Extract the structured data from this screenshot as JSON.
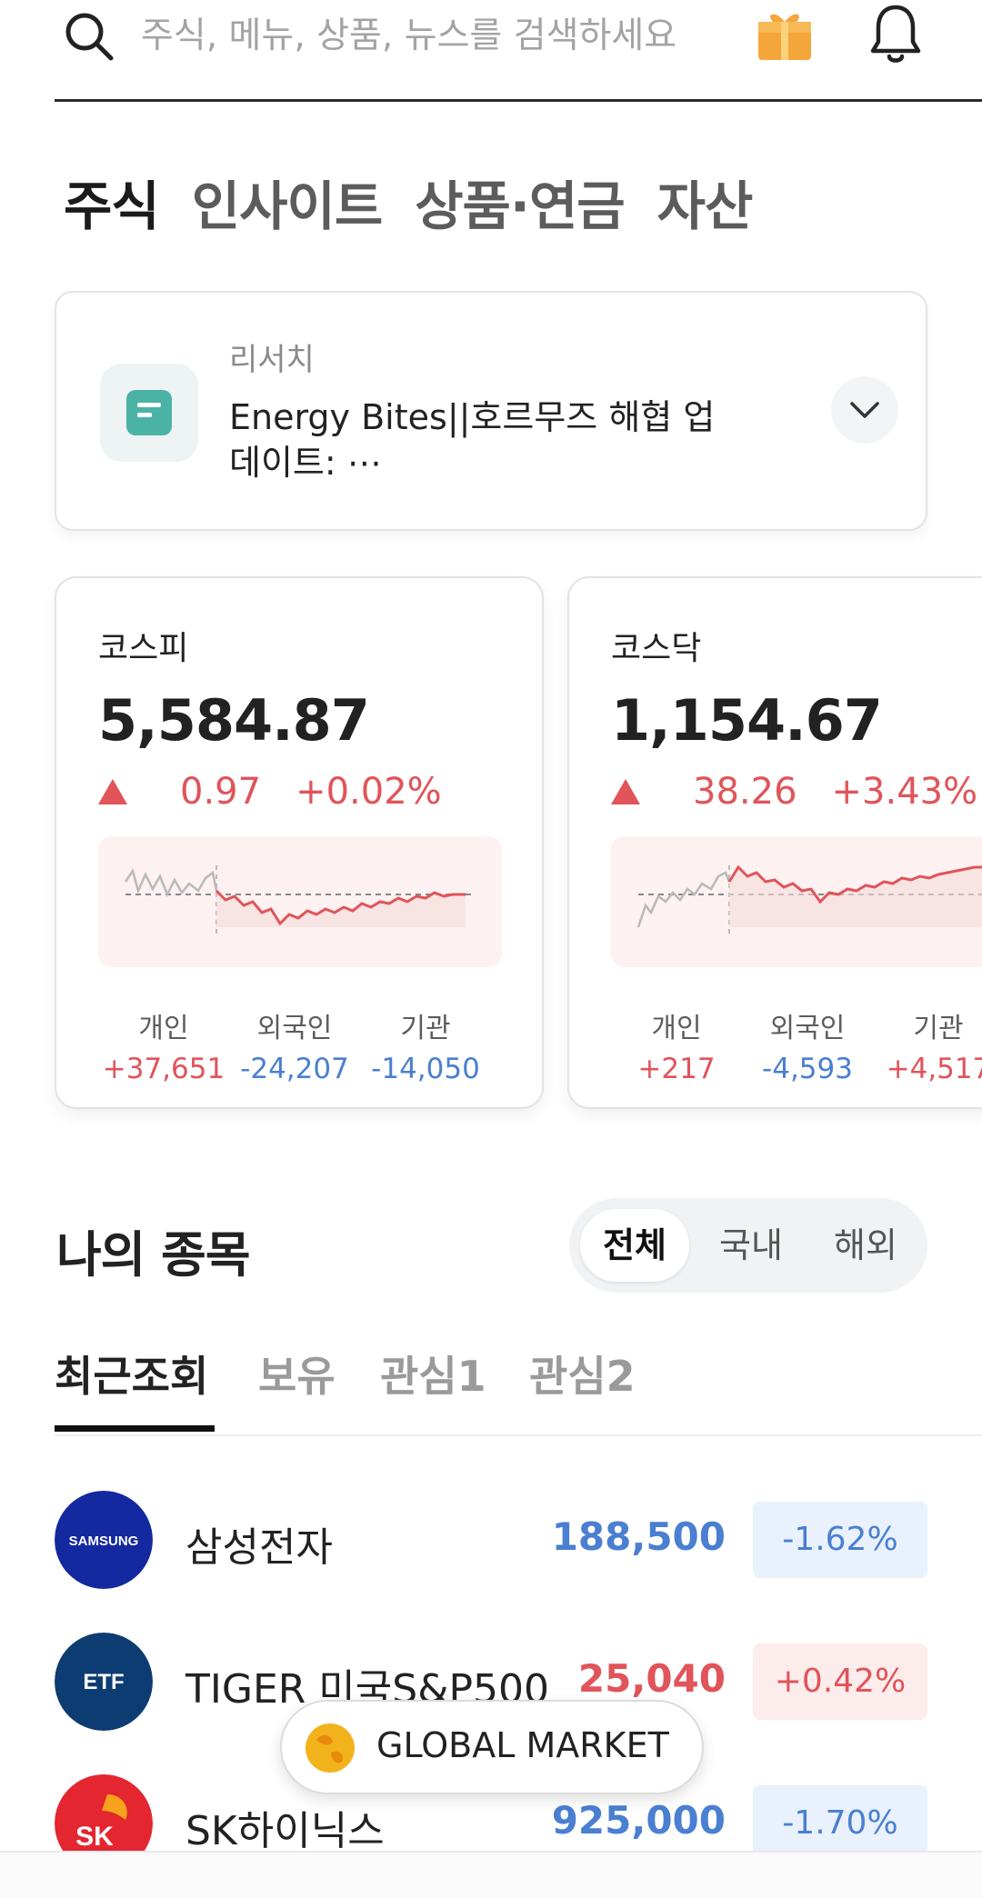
{
  "search": {
    "placeholder": "주식, 메뉴, 상품, 뉴스를 검색하세요"
  },
  "top_tabs": [
    {
      "label": "주식",
      "active": true
    },
    {
      "label": "인사이트",
      "active": false
    },
    {
      "label": "상품·연금",
      "active": false
    },
    {
      "label": "자산",
      "active": false
    }
  ],
  "research": {
    "label": "리서치",
    "title": "Energy Bites||호르무즈 해협 업데이트: ⋯"
  },
  "indices": [
    {
      "name": "코스피",
      "value": "5,584.87",
      "change_points": "0.97",
      "change_pct": "+0.02%",
      "investors": [
        {
          "label": "개인",
          "value": "+37,651",
          "sign": "pos"
        },
        {
          "label": "외국인",
          "value": "-24,207",
          "sign": "neg"
        },
        {
          "label": "기관",
          "value": "-14,050",
          "sign": "neg"
        }
      ]
    },
    {
      "name": "코스닥",
      "value": "1,154.67",
      "change_points": "38.26",
      "change_pct": "+3.43%",
      "investors": [
        {
          "label": "개인",
          "value": "+217",
          "sign": "pos"
        },
        {
          "label": "외국인",
          "value": "-4,593",
          "sign": "neg"
        },
        {
          "label": "기관",
          "value": "+4,517",
          "sign": "pos"
        }
      ]
    }
  ],
  "my_stocks": {
    "title": "나의 종목",
    "segments": [
      {
        "label": "전체",
        "active": true
      },
      {
        "label": "국내",
        "active": false
      },
      {
        "label": "해외",
        "active": false
      }
    ],
    "sub_tabs": [
      {
        "label": "최근조회",
        "active": true
      },
      {
        "label": "보유",
        "active": false
      },
      {
        "label": "관심1",
        "active": false
      },
      {
        "label": "관심2",
        "active": false
      }
    ],
    "rows": [
      {
        "name": "삼성전자",
        "price": "188,500",
        "change": "-1.62%",
        "sign": "neg",
        "logo_text": "SAMSUNG",
        "logo_color": "#1428a0"
      },
      {
        "name": "TIGER 미국S&P500",
        "price": "25,040",
        "change": "+0.42%",
        "sign": "pos",
        "logo_text": "ETF",
        "logo_color": "#0d3c72"
      },
      {
        "name": "SK하이닉스",
        "price": "925,000",
        "change": "-1.70%",
        "sign": "neg",
        "logo_text": "SK",
        "logo_color": "#e3262f"
      }
    ]
  },
  "global_market": {
    "label": "GLOBAL MARKET"
  },
  "colors": {
    "up": "#e0545a",
    "down": "#4a7fd1",
    "accent_teal": "#4ab3a5"
  }
}
